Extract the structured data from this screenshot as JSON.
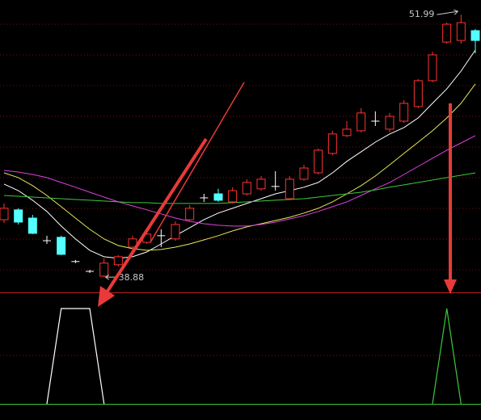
{
  "chart_data": {
    "type": "candlestick",
    "ylim": [
      38.12,
      52.72
    ],
    "up_color": "#ff3232",
    "down_color": "#54ffff",
    "flat_color": "#ffffff",
    "open": [
      41.75,
      42.24,
      41.83,
      40.7,
      40.87,
      39.66,
      39.17,
      38.93,
      39.5,
      40.38,
      40.62,
      40.95,
      40.79,
      41.75,
      42.84,
      43.04,
      42.64,
      43.04,
      43.29,
      43.41,
      42.8,
      43.77,
      44.09,
      45.06,
      45.95,
      46.19,
      46.67,
      46.27,
      46.67,
      47.4,
      48.69,
      50.62,
      50.7,
      51.19
    ],
    "high": [
      42.56,
      42.32,
      41.99,
      40.95,
      40.95,
      39.74,
      39.25,
      39.82,
      39.98,
      40.95,
      41.19,
      41.27,
      41.67,
      42.48,
      43.04,
      43.29,
      43.37,
      43.77,
      43.93,
      44.17,
      43.93,
      44.49,
      45.3,
      46.19,
      46.67,
      47.32,
      47.16,
      47.08,
      47.72,
      48.77,
      50.14,
      51.59,
      51.99,
      51.27
    ],
    "low": [
      41.59,
      41.51,
      41.03,
      40.54,
      39.98,
      39.58,
      39.09,
      38.88,
      39.42,
      40.3,
      40.54,
      40.38,
      40.7,
      41.67,
      42.64,
      42.64,
      42.56,
      42.96,
      43.2,
      43.2,
      42.72,
      43.69,
      44.01,
      44.98,
      45.87,
      46.11,
      46.43,
      46.11,
      46.59,
      47.32,
      48.61,
      50.54,
      50.54,
      50.06
    ],
    "close": [
      42.32,
      41.63,
      41.07,
      40.7,
      40.02,
      39.66,
      39.17,
      39.58,
      39.9,
      40.79,
      41.03,
      40.95,
      41.51,
      42.32,
      42.84,
      42.72,
      43.2,
      43.61,
      43.77,
      43.41,
      43.77,
      44.33,
      45.22,
      46.03,
      46.27,
      47.08,
      46.67,
      46.91,
      47.56,
      48.69,
      49.98,
      51.51,
      51.59,
      50.7
    ],
    "high_label": "51.99",
    "low_label": "38.88",
    "series": [
      {
        "color": "#ffffff",
        "values": [
          43.53,
          43.2,
          42.72,
          42.16,
          41.43,
          40.79,
          40.22,
          39.9,
          39.82,
          39.9,
          40.14,
          40.54,
          40.95,
          41.35,
          41.75,
          42.08,
          42.32,
          42.56,
          42.8,
          43.04,
          43.2,
          43.37,
          43.61,
          44.09,
          44.66,
          45.14,
          45.62,
          46.03,
          46.35,
          46.83,
          47.56,
          48.28,
          49.17,
          50.22
        ]
      },
      {
        "color": "#e6e65a",
        "values": [
          44.09,
          43.85,
          43.45,
          42.96,
          42.4,
          41.83,
          41.27,
          40.79,
          40.46,
          40.3,
          40.22,
          40.26,
          40.38,
          40.54,
          40.74,
          40.95,
          41.19,
          41.39,
          41.55,
          41.71,
          41.87,
          42.08,
          42.32,
          42.64,
          43.04,
          43.45,
          43.93,
          44.49,
          45.06,
          45.62,
          46.19,
          46.83,
          47.56,
          48.53
        ]
      },
      {
        "color": "#e040e0",
        "values": [
          44.21,
          44.13,
          44.01,
          43.85,
          43.61,
          43.37,
          43.12,
          42.88,
          42.64,
          42.44,
          42.24,
          42.04,
          41.83,
          41.67,
          41.55,
          41.47,
          41.43,
          41.43,
          41.51,
          41.63,
          41.79,
          41.95,
          42.16,
          42.4,
          42.64,
          42.96,
          43.29,
          43.61,
          44.01,
          44.41,
          44.82,
          45.22,
          45.58,
          45.95
        ]
      },
      {
        "color": "#3cc83c",
        "values": [
          42.96,
          42.92,
          42.88,
          42.84,
          42.8,
          42.76,
          42.72,
          42.68,
          42.64,
          42.6,
          42.6,
          42.56,
          42.56,
          42.56,
          42.56,
          42.56,
          42.6,
          42.64,
          42.68,
          42.72,
          42.76,
          42.8,
          42.88,
          42.96,
          43.04,
          43.12,
          43.24,
          43.37,
          43.49,
          43.61,
          43.73,
          43.85,
          43.97,
          44.09
        ]
      }
    ],
    "indicator": {
      "ylim": [
        0,
        1
      ],
      "series": [
        {
          "color": "#ffffff",
          "values": [
            null,
            null,
            null,
            0,
            1,
            1,
            1,
            0,
            null,
            null,
            null,
            null,
            null,
            null,
            null,
            null,
            null,
            null,
            null,
            null,
            null,
            null,
            null,
            null,
            null,
            null,
            null,
            null,
            null,
            null,
            null,
            null,
            null,
            null
          ]
        },
        {
          "color": "#3cc83c",
          "values": [
            null,
            null,
            null,
            null,
            null,
            null,
            null,
            null,
            null,
            null,
            null,
            null,
            null,
            null,
            null,
            null,
            null,
            null,
            null,
            null,
            null,
            null,
            null,
            null,
            null,
            null,
            null,
            null,
            null,
            null,
            0,
            1,
            0,
            null
          ]
        }
      ]
    }
  }
}
